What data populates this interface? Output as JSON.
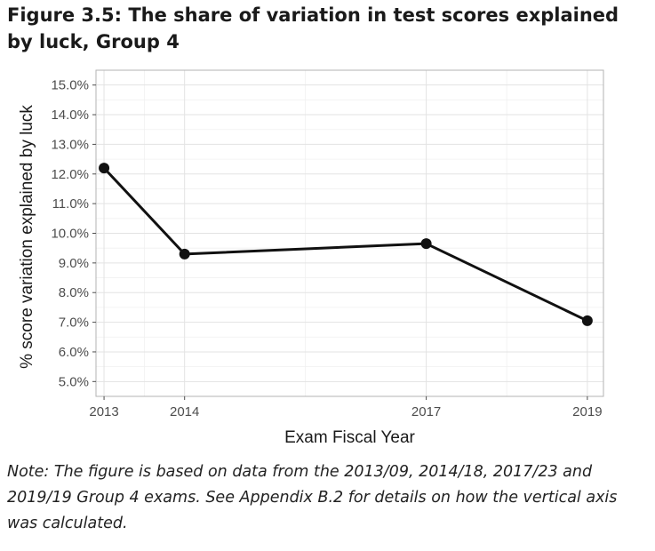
{
  "figure": {
    "title": "Figure 3.5: The share of variation in test scores explained by luck, Group 4",
    "note": "Note: The figure is based on data from the 2013/09, 2014/18, 2017/23 and 2019/19 Group 4 exams. See Appendix B.2 for details on how the vertical axis was calculated."
  },
  "chart_data": {
    "type": "line",
    "title": "",
    "xlabel": "Exam Fiscal Year",
    "ylabel": "% score variation explained by luck",
    "x": [
      2013,
      2014,
      2017,
      2019
    ],
    "x_tick_labels": [
      "2013",
      "2014",
      "2017",
      "2019"
    ],
    "xlim": [
      2012.9,
      2019.2
    ],
    "y_ticks": [
      5,
      6,
      7,
      8,
      9,
      10,
      11,
      12,
      13,
      14,
      15
    ],
    "y_tick_labels": [
      "5.0%",
      "6.0%",
      "7.0%",
      "8.0%",
      "9.0%",
      "10.0%",
      "11.0%",
      "12.0%",
      "13.0%",
      "14.0%",
      "15.0%"
    ],
    "ylim": [
      4.5,
      15.5
    ],
    "grid": true,
    "series": [
      {
        "name": "Group 4",
        "values": [
          12.2,
          9.3,
          9.65,
          7.05
        ],
        "color": "#111111"
      }
    ]
  }
}
